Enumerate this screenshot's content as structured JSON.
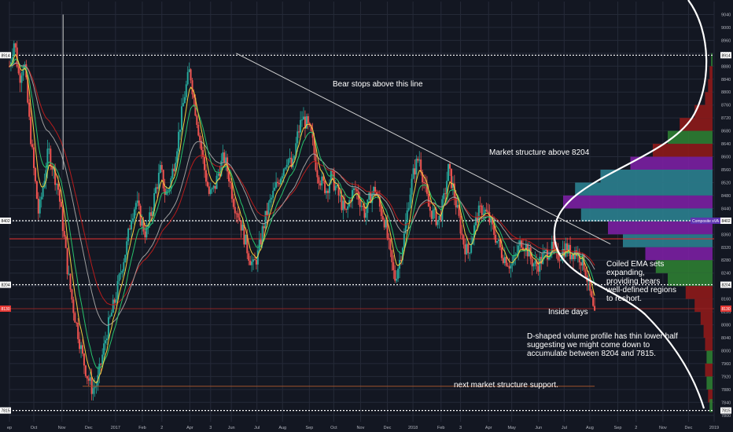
{
  "chart_data": {
    "type": "candlestick",
    "symbol_axis": "price",
    "ylim": [
      7780,
      9080
    ],
    "y_tick_labels": [
      "9040",
      "9000",
      "8960",
      "8920",
      "8880",
      "8840",
      "8800",
      "8760",
      "8720",
      "8680",
      "8640",
      "8600",
      "8560",
      "8520",
      "8480",
      "8440",
      "8400",
      "8360",
      "8320",
      "8280",
      "8240",
      "8200",
      "8160",
      "8120",
      "8080",
      "8040",
      "8000",
      "7960",
      "7920",
      "7880",
      "7840",
      "7800"
    ],
    "x_tick_labels": [
      {
        "label": "ep",
        "t": 0
      },
      {
        "label": "Oct",
        "t": 20
      },
      {
        "label": "Nov",
        "t": 43
      },
      {
        "label": "Dec",
        "t": 65
      },
      {
        "label": "2017",
        "t": 87
      },
      {
        "label": "Feb",
        "t": 109
      },
      {
        "label": "2",
        "t": 125
      },
      {
        "label": "Apr",
        "t": 148
      },
      {
        "label": "3",
        "t": 165
      },
      {
        "label": "Jun",
        "t": 182
      },
      {
        "label": "Jul",
        "t": 203
      },
      {
        "label": "Aug",
        "t": 224
      },
      {
        "label": "Sep",
        "t": 246
      },
      {
        "label": "Oct",
        "t": 266
      },
      {
        "label": "Nov",
        "t": 288
      },
      {
        "label": "Dec",
        "t": 310
      },
      {
        "label": "2018",
        "t": 331
      },
      {
        "label": "Feb",
        "t": 354
      },
      {
        "label": "3",
        "t": 370
      },
      {
        "label": "Apr",
        "t": 393
      },
      {
        "label": "May",
        "t": 412
      },
      {
        "label": "Jun",
        "t": 434
      },
      {
        "label": "Jul",
        "t": 455
      },
      {
        "label": "Aug",
        "t": 476
      },
      {
        "label": "Sep",
        "t": 499
      },
      {
        "label": "2",
        "t": 514
      },
      {
        "label": "Nov",
        "t": 536
      },
      {
        "label": "Dec",
        "t": 557
      },
      {
        "label": "2019",
        "t": 578
      }
    ],
    "price_path": [
      [
        0,
        8880
      ],
      [
        4,
        8960
      ],
      [
        8,
        8840
      ],
      [
        12,
        8900
      ],
      [
        16,
        8720
      ],
      [
        20,
        8560
      ],
      [
        24,
        8420
      ],
      [
        28,
        8520
      ],
      [
        32,
        8620
      ],
      [
        36,
        8560
      ],
      [
        40,
        8500
      ],
      [
        44,
        8380
      ],
      [
        48,
        8240
      ],
      [
        52,
        8140
      ],
      [
        56,
        8060
      ],
      [
        60,
        7980
      ],
      [
        64,
        7920
      ],
      [
        68,
        7880
      ],
      [
        72,
        7900
      ],
      [
        76,
        7980
      ],
      [
        80,
        8060
      ],
      [
        84,
        8120
      ],
      [
        88,
        8180
      ],
      [
        92,
        8260
      ],
      [
        96,
        8320
      ],
      [
        100,
        8420
      ],
      [
        104,
        8460
      ],
      [
        108,
        8400
      ],
      [
        112,
        8360
      ],
      [
        116,
        8420
      ],
      [
        120,
        8500
      ],
      [
        124,
        8560
      ],
      [
        128,
        8480
      ],
      [
        132,
        8520
      ],
      [
        136,
        8600
      ],
      [
        140,
        8700
      ],
      [
        144,
        8800
      ],
      [
        148,
        8870
      ],
      [
        152,
        8760
      ],
      [
        156,
        8660
      ],
      [
        160,
        8560
      ],
      [
        164,
        8480
      ],
      [
        168,
        8500
      ],
      [
        172,
        8560
      ],
      [
        176,
        8600
      ],
      [
        180,
        8540
      ],
      [
        184,
        8460
      ],
      [
        188,
        8420
      ],
      [
        192,
        8360
      ],
      [
        196,
        8300
      ],
      [
        200,
        8260
      ],
      [
        204,
        8300
      ],
      [
        208,
        8380
      ],
      [
        212,
        8440
      ],
      [
        216,
        8480
      ],
      [
        220,
        8520
      ],
      [
        224,
        8560
      ],
      [
        228,
        8600
      ],
      [
        232,
        8560
      ],
      [
        236,
        8660
      ],
      [
        240,
        8720
      ],
      [
        244,
        8700
      ],
      [
        248,
        8660
      ],
      [
        252,
        8560
      ],
      [
        256,
        8520
      ],
      [
        260,
        8500
      ],
      [
        264,
        8540
      ],
      [
        268,
        8500
      ],
      [
        272,
        8460
      ],
      [
        276,
        8420
      ],
      [
        280,
        8480
      ],
      [
        284,
        8500
      ],
      [
        288,
        8460
      ],
      [
        292,
        8420
      ],
      [
        296,
        8480
      ],
      [
        300,
        8500
      ],
      [
        304,
        8440
      ],
      [
        308,
        8400
      ],
      [
        312,
        8300
      ],
      [
        316,
        8220
      ],
      [
        320,
        8280
      ],
      [
        324,
        8360
      ],
      [
        328,
        8480
      ],
      [
        332,
        8560
      ],
      [
        336,
        8600
      ],
      [
        340,
        8520
      ],
      [
        344,
        8440
      ],
      [
        348,
        8420
      ],
      [
        352,
        8400
      ],
      [
        356,
        8460
      ],
      [
        360,
        8560
      ],
      [
        364,
        8500
      ],
      [
        368,
        8420
      ],
      [
        372,
        8340
      ],
      [
        376,
        8300
      ],
      [
        380,
        8360
      ],
      [
        384,
        8420
      ],
      [
        388,
        8440
      ],
      [
        392,
        8420
      ],
      [
        396,
        8380
      ],
      [
        400,
        8340
      ],
      [
        404,
        8300
      ],
      [
        408,
        8280
      ],
      [
        412,
        8260
      ],
      [
        416,
        8300
      ],
      [
        420,
        8340
      ],
      [
        424,
        8320
      ],
      [
        428,
        8280
      ],
      [
        432,
        8260
      ],
      [
        436,
        8280
      ],
      [
        440,
        8300
      ],
      [
        444,
        8320
      ],
      [
        448,
        8290
      ],
      [
        452,
        8300
      ],
      [
        456,
        8320
      ],
      [
        460,
        8300
      ],
      [
        464,
        8310
      ],
      [
        468,
        8290
      ],
      [
        472,
        8260
      ],
      [
        474,
        8220
      ],
      [
        476,
        8180
      ],
      [
        478,
        8140
      ],
      [
        480,
        8100
      ]
    ],
    "horizontal_levels": [
      {
        "price": 8914,
        "label": "8914",
        "style": "dotted-white"
      },
      {
        "price": 8402,
        "label": "8402",
        "style": "dotted-white"
      },
      {
        "price": 8346,
        "label": "",
        "style": "solid-red"
      },
      {
        "price": 8204,
        "label": "8204",
        "style": "dotted-white"
      },
      {
        "price": 8130,
        "label": "8130",
        "style": "solid-red-thin"
      },
      {
        "price": 7815,
        "label": "7815",
        "style": "dotted-white"
      }
    ],
    "composite_label": "Composite sVA",
    "annotations": [
      "Bear stops above this line",
      "Market structure above 8204",
      "Coiled EMA sets expanding, providing bears well-defined regions to reshort.",
      "Inside days",
      "D-shaped volume profile has thin lower half suggesting we might come down to accumulate between 8204 and 7815.",
      "next market structure support."
    ],
    "volume_profile": [
      {
        "price": 8900,
        "size": 0.01,
        "color": "#2e7d32"
      },
      {
        "price": 8860,
        "size": 0.02,
        "color": "#8e1a1a"
      },
      {
        "price": 8820,
        "size": 0.03,
        "color": "#8e1a1a"
      },
      {
        "price": 8780,
        "size": 0.05,
        "color": "#8e1a1a"
      },
      {
        "price": 8740,
        "size": 0.12,
        "color": "#8e1a1a"
      },
      {
        "price": 8700,
        "size": 0.22,
        "color": "#8e1a1a"
      },
      {
        "price": 8660,
        "size": 0.3,
        "color": "#2e7d32"
      },
      {
        "price": 8620,
        "size": 0.4,
        "color": "#8e1a1a"
      },
      {
        "price": 8580,
        "size": 0.55,
        "color": "#7b1fa2"
      },
      {
        "price": 8540,
        "size": 0.75,
        "color": "#2b7f8f"
      },
      {
        "price": 8500,
        "size": 0.92,
        "color": "#2b7f8f"
      },
      {
        "price": 8460,
        "size": 1.0,
        "color": "#7b1fa2"
      },
      {
        "price": 8420,
        "size": 0.88,
        "color": "#2b7f8f"
      },
      {
        "price": 8380,
        "size": 0.7,
        "color": "#7b1fa2"
      },
      {
        "price": 8340,
        "size": 0.6,
        "color": "#2b7f8f"
      },
      {
        "price": 8300,
        "size": 0.45,
        "color": "#7b1fa2"
      },
      {
        "price": 8260,
        "size": 0.38,
        "color": "#2e7d32"
      },
      {
        "price": 8220,
        "size": 0.3,
        "color": "#2e7d32"
      },
      {
        "price": 8180,
        "size": 0.18,
        "color": "#8e1a1a"
      },
      {
        "price": 8140,
        "size": 0.12,
        "color": "#8e1a1a"
      },
      {
        "price": 8100,
        "size": 0.08,
        "color": "#8e1a1a"
      },
      {
        "price": 8060,
        "size": 0.06,
        "color": "#8e1a1a"
      },
      {
        "price": 8020,
        "size": 0.05,
        "color": "#8e1a1a"
      },
      {
        "price": 7980,
        "size": 0.04,
        "color": "#2e7d32"
      },
      {
        "price": 7940,
        "size": 0.05,
        "color": "#8e1a1a"
      },
      {
        "price": 7900,
        "size": 0.04,
        "color": "#2e7d32"
      },
      {
        "price": 7860,
        "size": 0.03,
        "color": "#8e1a1a"
      },
      {
        "price": 7830,
        "size": 0.02,
        "color": "#2e7d32"
      }
    ],
    "colors": {
      "background": "#131722",
      "grid": "#252a38",
      "up": "#26a69a",
      "down": "#ef5350",
      "ema_fast": "#f4d03f",
      "ema_mid": "#27c26c",
      "ema_slow": "#9e9e9e",
      "ema_red": "#b71c1c",
      "text": "#ffffff",
      "axis_text": "#b2b5be"
    }
  }
}
